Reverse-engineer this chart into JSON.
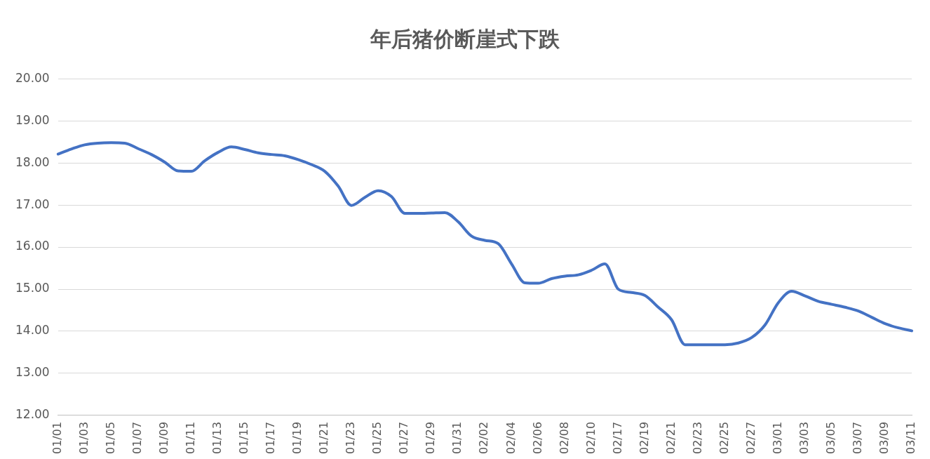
{
  "chart_data": {
    "type": "line",
    "title": "年后猪价断崖式下跌",
    "categories": [
      "01/01",
      null,
      "01/03",
      null,
      "01/05",
      null,
      "01/07",
      null,
      "01/09",
      null,
      "01/11",
      null,
      "01/13",
      null,
      "01/15",
      null,
      "01/17",
      null,
      "01/19",
      null,
      "01/21",
      null,
      "01/23",
      null,
      "01/25",
      null,
      "01/27",
      null,
      "01/29",
      null,
      "01/31",
      null,
      "02/02",
      null,
      "02/04",
      null,
      "02/06",
      null,
      "02/08",
      null,
      "02/10",
      null,
      "02/17",
      null,
      "02/19",
      null,
      "02/21",
      null,
      "02/23",
      null,
      "02/25",
      null,
      "02/27",
      null,
      "03/01",
      null,
      "03/03",
      null,
      "03/05",
      null,
      "03/07",
      null,
      "03/09",
      null,
      "03/11"
    ],
    "series": [
      {
        "color": "#4472c4",
        "values": [
          18.21,
          18.33,
          18.43,
          18.47,
          18.48,
          18.47,
          18.34,
          18.2,
          18.02,
          17.81,
          17.8,
          18.05,
          18.25,
          18.38,
          18.32,
          18.24,
          18.2,
          18.17,
          18.08,
          17.96,
          17.8,
          17.45,
          16.99,
          17.18,
          17.34,
          17.2,
          16.8,
          16.8,
          16.81,
          16.82,
          16.6,
          16.26,
          16.16,
          16.08,
          15.6,
          15.15,
          15.14,
          15.25,
          15.31,
          15.34,
          15.45,
          15.6,
          15.0,
          14.92,
          14.85,
          14.57,
          14.27,
          13.68,
          13.68,
          13.68,
          13.68,
          13.72,
          13.85,
          14.15,
          14.68,
          14.95,
          14.84,
          14.71,
          14.64,
          14.57,
          14.48,
          14.33,
          14.18,
          14.08,
          14.01
        ]
      }
    ],
    "ylim": [
      12,
      20
    ],
    "yticks": [
      {
        "value": 12,
        "label": "12.00"
      },
      {
        "value": 13,
        "label": "13.00"
      },
      {
        "value": 14,
        "label": "14.00"
      },
      {
        "value": 15,
        "label": "15.00"
      },
      {
        "value": 16,
        "label": "16.00"
      },
      {
        "value": 17,
        "label": "17.00"
      },
      {
        "value": 18,
        "label": "18.00"
      },
      {
        "value": 19,
        "label": "19.00"
      },
      {
        "value": 20,
        "label": "20.00"
      }
    ],
    "grid": "y",
    "legend": false,
    "marker": "none",
    "line_style": "solid"
  }
}
